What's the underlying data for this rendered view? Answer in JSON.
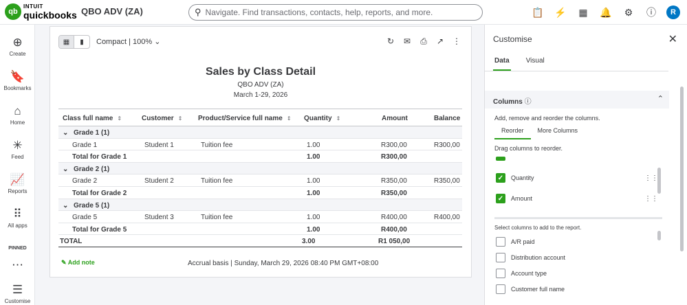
{
  "topbar": {
    "logo_mark": "qb",
    "logo_line1": "INTUIT",
    "logo_line2": "quickbooks",
    "company": "QBO ADV (ZA)",
    "search_placeholder": "Navigate. Find transactions, contacts, help, reports, and more.",
    "avatar_initial": "R",
    "icons": [
      "clipboard-icon",
      "lightning-icon",
      "apps-icon",
      "bell-icon",
      "gear-icon",
      "help-icon"
    ]
  },
  "nav": {
    "items": [
      {
        "label": "Create",
        "icon": "⊕"
      },
      {
        "label": "Bookmarks",
        "icon": "🔖"
      },
      {
        "label": "Home",
        "icon": "⌂"
      },
      {
        "label": "Feed",
        "icon": "✳"
      },
      {
        "label": "Reports",
        "icon": "📈"
      },
      {
        "label": "All apps",
        "icon": "⠿"
      }
    ],
    "pinned_label": "PINNED",
    "bottom_label": "Customise"
  },
  "report": {
    "view_mode": "Compact | 100%",
    "title": "Sales by Class Detail",
    "company": "QBO ADV (ZA)",
    "date_range": "March 1-29, 2026",
    "columns": [
      "Class full name",
      "Customer",
      "Product/Service full name",
      "Quantity",
      "Amount",
      "Balance"
    ],
    "groups": [
      {
        "name": "Grade 1 (1)",
        "row": {
          "class": "Grade 1",
          "customer": "Student 1",
          "product": "Tuition fee",
          "qty": "1.00",
          "amount": "R300,00",
          "balance": "R300,00"
        },
        "total_label": "Total for Grade 1",
        "total_qty": "1.00",
        "total_amount": "R300,00"
      },
      {
        "name": "Grade 2 (1)",
        "row": {
          "class": "Grade 2",
          "customer": "Student 2",
          "product": "Tuition fee",
          "qty": "1.00",
          "amount": "R350,00",
          "balance": "R350,00"
        },
        "total_label": "Total for Grade 2",
        "total_qty": "1.00",
        "total_amount": "R350,00"
      },
      {
        "name": "Grade 5 (1)",
        "row": {
          "class": "Grade 5",
          "customer": "Student 3",
          "product": "Tuition fee",
          "qty": "1.00",
          "amount": "R400,00",
          "balance": "R400,00"
        },
        "total_label": "Total for Grade 5",
        "total_qty": "1.00",
        "total_amount": "R400,00"
      }
    ],
    "grand_total_label": "TOTAL",
    "grand_total_qty": "3.00",
    "grand_total_amount": "R1 050,00",
    "add_note": "Add note",
    "footer": "Accrual basis  |  Sunday, March 29, 2026 08:40 PM GMT+08:00"
  },
  "panel": {
    "title": "Customise",
    "tabs": [
      "Data",
      "Visual"
    ],
    "columns_heading": "Columns",
    "columns_desc": "Add, remove and reorder the columns.",
    "subtabs": [
      "Reorder",
      "More Columns"
    ],
    "drag_hint": "Drag columns to reorder.",
    "selected_columns": [
      "Quantity",
      "Amount"
    ],
    "add_hint": "Select columns to add to the report.",
    "available_columns": [
      "A/R paid",
      "Distribution account",
      "Account type",
      "Customer full name"
    ]
  }
}
